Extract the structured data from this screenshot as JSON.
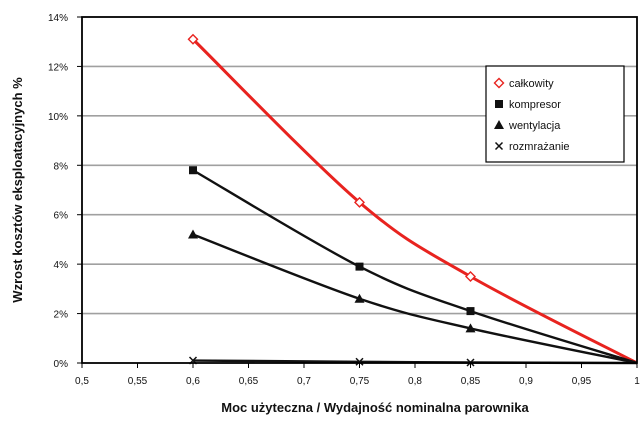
{
  "chart_data": {
    "type": "line",
    "title": "",
    "xlabel": "Moc użyteczna / Wydajność nominalna parownika",
    "ylabel": "Wzrost kosztów eksploatacyjnych %",
    "xlim": [
      0.5,
      1.0
    ],
    "ylim": [
      0,
      14
    ],
    "x_ticks": [
      "0,5",
      "0,55",
      "0,6",
      "0,65",
      "0,7",
      "0,75",
      "0,8",
      "0,85",
      "0,9",
      "0,95",
      "1"
    ],
    "y_ticks": [
      "0%",
      "2%",
      "4%",
      "6%",
      "8%",
      "10%",
      "12%",
      "14%"
    ],
    "grid": "horizontal-major",
    "legend_position": "top-right",
    "series": [
      {
        "name": "całkowity",
        "marker": "diamond-open",
        "color": "#e8231f",
        "x": [
          0.6,
          0.75,
          0.85,
          1.0
        ],
        "values": [
          13.1,
          6.5,
          3.5,
          0.0
        ]
      },
      {
        "name": "kompresor",
        "marker": "square",
        "color": "#111111",
        "x": [
          0.6,
          0.75,
          0.85,
          1.0
        ],
        "values": [
          7.8,
          3.9,
          2.1,
          0.0
        ]
      },
      {
        "name": "wentylacja",
        "marker": "triangle",
        "color": "#111111",
        "x": [
          0.6,
          0.75,
          0.85,
          1.0
        ],
        "values": [
          5.2,
          2.6,
          1.4,
          0.0
        ]
      },
      {
        "name": "rozmrażanie",
        "marker": "cross",
        "color": "#111111",
        "x": [
          0.6,
          0.75,
          0.85,
          1.0
        ],
        "values": [
          0.1,
          0.05,
          0.02,
          0.0
        ]
      }
    ]
  }
}
